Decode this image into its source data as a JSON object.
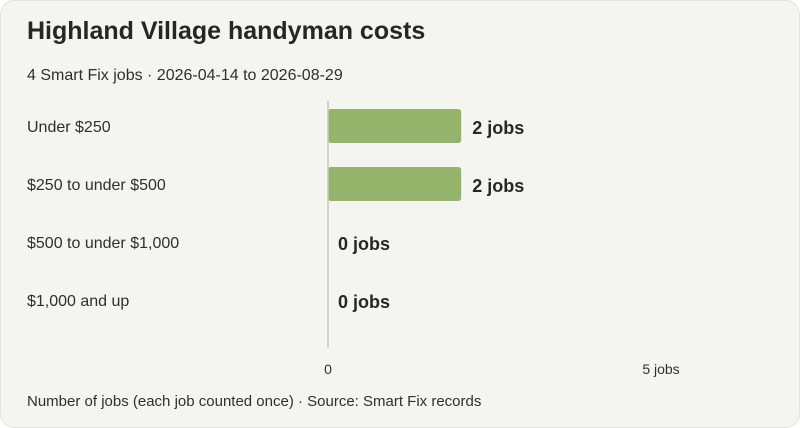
{
  "title": "Highland Village handyman costs",
  "subtitle": "4 Smart Fix jobs · 2026-04-14 to 2026-08-29",
  "footer": "Number of jobs (each job counted once) · Source: Smart Fix records",
  "colors": {
    "bar": "#95b46b",
    "axis": "#c4c9b8",
    "background": "#f4f5f0"
  },
  "chart_data": {
    "type": "bar",
    "orientation": "horizontal",
    "title": "Highland Village handyman costs",
    "subtitle": "4 Smart Fix jobs · 2026-04-14 to 2026-08-29",
    "categories": [
      "Under $250",
      "$250 to under $500",
      "$500 to under $1,000",
      "$1,000 and up"
    ],
    "values": [
      2,
      2,
      0,
      0
    ],
    "value_labels": [
      "2 jobs",
      "2 jobs",
      "0 jobs",
      "0 jobs"
    ],
    "xlim": [
      0,
      5
    ],
    "ticks": [
      {
        "value": 0,
        "label": "0"
      },
      {
        "value": 5,
        "label": "5 jobs"
      }
    ],
    "grid": false,
    "legend": "none"
  }
}
